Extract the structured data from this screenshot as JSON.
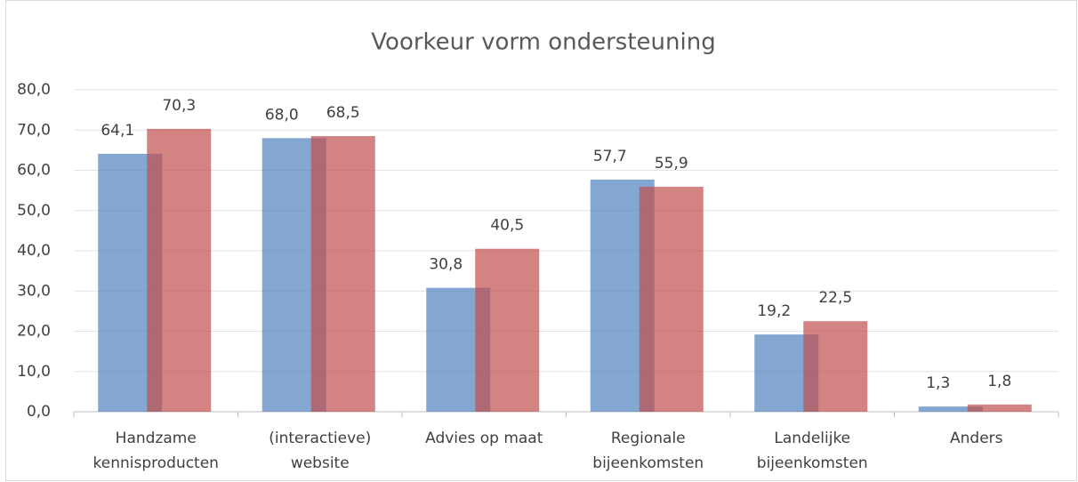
{
  "chart_data": {
    "type": "bar",
    "title": "Voorkeur vorm ondersteuning",
    "categories": [
      [
        "Handzame",
        "kennisproducten"
      ],
      [
        "(interactieve)",
        "website"
      ],
      [
        "Advies op maat"
      ],
      [
        "Regionale",
        "bijeenkomsten"
      ],
      [
        "Landelijke",
        "bijeenkomsten"
      ],
      [
        "Anders"
      ]
    ],
    "series": [
      {
        "color": "#4f81bd",
        "values": [
          64.1,
          68.0,
          30.8,
          57.7,
          19.2,
          1.3
        ],
        "value_labels": [
          "64,1",
          "68,0",
          "30,8",
          "57,7",
          "19,2",
          "1,3"
        ]
      },
      {
        "color": "#c0504d",
        "values": [
          70.3,
          68.5,
          40.5,
          55.9,
          22.5,
          1.8
        ],
        "value_labels": [
          "70,3",
          "68,5",
          "40,5",
          "55,9",
          "22,5",
          "1,8"
        ]
      }
    ],
    "ylim": [
      0,
      80
    ],
    "yticks": [
      {
        "value": 0,
        "label": "0,0"
      },
      {
        "value": 10,
        "label": "10,0"
      },
      {
        "value": 20,
        "label": "20,0"
      },
      {
        "value": 30,
        "label": "30,0"
      },
      {
        "value": 40,
        "label": "40,0"
      },
      {
        "value": 50,
        "label": "50,0"
      },
      {
        "value": 60,
        "label": "60,0"
      },
      {
        "value": 70,
        "label": "70,0"
      },
      {
        "value": 80,
        "label": "80,0"
      }
    ],
    "grid": true
  }
}
